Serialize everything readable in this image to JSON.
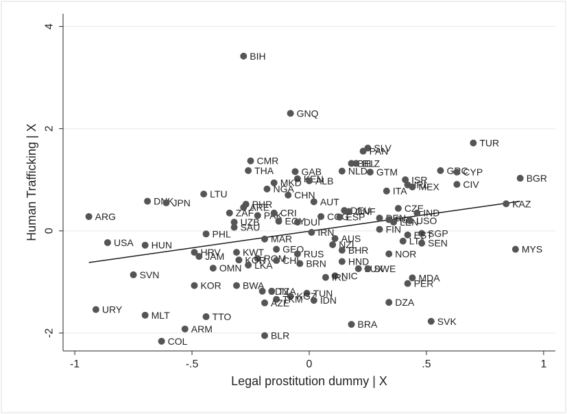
{
  "chart_data": {
    "type": "scatter",
    "title": "",
    "xlabel": "Legal prostitution dummy | X",
    "ylabel": "Human Trafficking | X",
    "xlim": [
      -1.05,
      1.05
    ],
    "ylim": [
      -2.35,
      4.25
    ],
    "x_ticks": [
      -1,
      -0.5,
      0,
      0.5,
      1
    ],
    "x_tick_labels": [
      "-1",
      "-.5",
      "0",
      ".5",
      "1"
    ],
    "y_ticks": [
      -2,
      0,
      2,
      4
    ],
    "y_tick_labels": [
      "-2",
      "0",
      "2",
      "4"
    ],
    "grid": true,
    "legend": "none",
    "colors": {
      "point": "#555555",
      "fit_line": "#1a1a1a",
      "grid": "#e8e8e8",
      "axis": "#222222",
      "border": "#dddddd"
    },
    "fit_line": {
      "x": [
        -0.94,
        0.9
      ],
      "y": [
        -0.62,
        0.58
      ]
    },
    "points": [
      {
        "label": "BIH",
        "x": -0.28,
        "y": 3.42
      },
      {
        "label": "GNQ",
        "x": -0.08,
        "y": 2.3
      },
      {
        "label": "TUR",
        "x": 0.7,
        "y": 1.72
      },
      {
        "label": "SLV",
        "x": 0.25,
        "y": 1.62
      },
      {
        "label": "PAN",
        "x": 0.23,
        "y": 1.56
      },
      {
        "label": "CMR",
        "x": -0.25,
        "y": 1.37
      },
      {
        "label": "BEL",
        "x": 0.18,
        "y": 1.32
      },
      {
        "label": "BLZ",
        "x": 0.2,
        "y": 1.32
      },
      {
        "label": "GRC",
        "x": 0.56,
        "y": 1.18
      },
      {
        "label": "CYP",
        "x": 0.63,
        "y": 1.15
      },
      {
        "label": "THA",
        "x": -0.26,
        "y": 1.18
      },
      {
        "label": "GAB",
        "x": -0.06,
        "y": 1.16
      },
      {
        "label": "NLD",
        "x": 0.14,
        "y": 1.17
      },
      {
        "label": "GTM",
        "x": 0.26,
        "y": 1.15
      },
      {
        "label": "KEN",
        "x": -0.05,
        "y": 1.02
      },
      {
        "label": "ALB",
        "x": 0.0,
        "y": 0.98
      },
      {
        "label": "MKD",
        "x": -0.15,
        "y": 0.94
      },
      {
        "label": "BGR",
        "x": 0.9,
        "y": 1.03
      },
      {
        "label": "ISR",
        "x": 0.41,
        "y": 1.0
      },
      {
        "label": "CIV",
        "x": 0.63,
        "y": 0.91
      },
      {
        "label": "IRL",
        "x": 0.42,
        "y": 0.9
      },
      {
        "label": "MEX",
        "x": 0.44,
        "y": 0.86
      },
      {
        "label": "NGA",
        "x": -0.18,
        "y": 0.82
      },
      {
        "label": "ITA",
        "x": 0.33,
        "y": 0.78
      },
      {
        "label": "LTU",
        "x": -0.45,
        "y": 0.72
      },
      {
        "label": "CHN",
        "x": -0.09,
        "y": 0.7
      },
      {
        "label": "DNK",
        "x": -0.69,
        "y": 0.58
      },
      {
        "label": "JPN",
        "x": -0.61,
        "y": 0.55
      },
      {
        "label": "AUT",
        "x": 0.02,
        "y": 0.57
      },
      {
        "label": "KAZ",
        "x": 0.84,
        "y": 0.53
      },
      {
        "label": "PHR",
        "x": -0.27,
        "y": 0.52
      },
      {
        "label": "ARE",
        "x": -0.28,
        "y": 0.46
      },
      {
        "label": "CZE",
        "x": 0.38,
        "y": 0.44
      },
      {
        "label": "DEU",
        "x": 0.15,
        "y": 0.4
      },
      {
        "label": "GNF",
        "x": 0.17,
        "y": 0.38
      },
      {
        "label": "IND",
        "x": 0.46,
        "y": 0.35
      },
      {
        "label": "ZAF",
        "x": -0.34,
        "y": 0.35
      },
      {
        "label": "PAK",
        "x": -0.22,
        "y": 0.3
      },
      {
        "label": "CRI",
        "x": -0.15,
        "y": 0.35
      },
      {
        "label": "ARG",
        "x": -0.94,
        "y": 0.28
      },
      {
        "label": "COG",
        "x": 0.05,
        "y": 0.28
      },
      {
        "label": "ESP",
        "x": 0.13,
        "y": 0.27
      },
      {
        "label": "DEN",
        "x": 0.3,
        "y": 0.25
      },
      {
        "label": "POL",
        "x": 0.34,
        "y": 0.22
      },
      {
        "label": "UZB",
        "x": -0.32,
        "y": 0.17
      },
      {
        "label": "EGY",
        "x": -0.13,
        "y": 0.19
      },
      {
        "label": "DUI",
        "x": -0.05,
        "y": 0.17
      },
      {
        "label": "LEN",
        "x": 0.36,
        "y": 0.17
      },
      {
        "label": "USO",
        "x": 0.43,
        "y": 0.2
      },
      {
        "label": "SAU",
        "x": -0.32,
        "y": 0.07
      },
      {
        "label": "FIN",
        "x": 0.3,
        "y": 0.03
      },
      {
        "label": "IRN",
        "x": 0.01,
        "y": -0.03
      },
      {
        "label": "SGP",
        "x": 0.48,
        "y": -0.05
      },
      {
        "label": "PHL",
        "x": -0.44,
        "y": -0.06
      },
      {
        "label": "EST",
        "x": 0.42,
        "y": -0.08
      },
      {
        "label": "AUS",
        "x": 0.11,
        "y": -0.15
      },
      {
        "label": "MAR",
        "x": -0.19,
        "y": -0.16
      },
      {
        "label": "LTA",
        "x": 0.4,
        "y": -0.2
      },
      {
        "label": "SEN",
        "x": 0.48,
        "y": -0.24
      },
      {
        "label": "USA",
        "x": -0.86,
        "y": -0.23
      },
      {
        "label": "HUN",
        "x": -0.7,
        "y": -0.28
      },
      {
        "label": "NZL",
        "x": 0.1,
        "y": -0.27
      },
      {
        "label": "MYS",
        "x": 0.88,
        "y": -0.36
      },
      {
        "label": "GEO",
        "x": -0.14,
        "y": -0.36
      },
      {
        "label": "BHR",
        "x": 0.14,
        "y": -0.38
      },
      {
        "label": "HRV",
        "x": -0.49,
        "y": -0.42
      },
      {
        "label": "KWT",
        "x": -0.31,
        "y": -0.42
      },
      {
        "label": "RUS",
        "x": -0.05,
        "y": -0.45
      },
      {
        "label": "NOR",
        "x": 0.34,
        "y": -0.45
      },
      {
        "label": "JAM",
        "x": -0.47,
        "y": -0.5
      },
      {
        "label": "ROM",
        "x": -0.22,
        "y": -0.54
      },
      {
        "label": "HND",
        "x": 0.14,
        "y": -0.6
      },
      {
        "label": "KOR",
        "x": -0.3,
        "y": -0.57
      },
      {
        "label": "CHL",
        "x": -0.14,
        "y": -0.58
      },
      {
        "label": "BRN",
        "x": -0.04,
        "y": -0.64
      },
      {
        "label": "LKA",
        "x": -0.26,
        "y": -0.67
      },
      {
        "label": "OMN",
        "x": -0.41,
        "y": -0.73
      },
      {
        "label": "LUX",
        "x": 0.21,
        "y": -0.74
      },
      {
        "label": "SWE",
        "x": 0.25,
        "y": -0.74
      },
      {
        "label": "SVN",
        "x": -0.75,
        "y": -0.86
      },
      {
        "label": "NIC",
        "x": 0.11,
        "y": -0.88
      },
      {
        "label": "IRL",
        "x": 0.07,
        "y": -0.91
      },
      {
        "label": "MDA",
        "x": 0.44,
        "y": -0.92
      },
      {
        "label": "PER",
        "x": 0.42,
        "y": -1.03
      },
      {
        "label": "KOR",
        "x": -0.49,
        "y": -1.07
      },
      {
        "label": "BWA",
        "x": -0.31,
        "y": -1.07
      },
      {
        "label": "SDN",
        "x": -0.2,
        "y": -1.18
      },
      {
        "label": "TZA",
        "x": -0.16,
        "y": -1.18
      },
      {
        "label": "TUN",
        "x": -0.01,
        "y": -1.22
      },
      {
        "label": "KGZ",
        "x": -0.08,
        "y": -1.28
      },
      {
        "label": "TKM",
        "x": -0.14,
        "y": -1.34
      },
      {
        "label": "IDN",
        "x": 0.02,
        "y": -1.36
      },
      {
        "label": "AZE",
        "x": -0.19,
        "y": -1.41
      },
      {
        "label": "DZA",
        "x": 0.34,
        "y": -1.4
      },
      {
        "label": "URY",
        "x": -0.91,
        "y": -1.54
      },
      {
        "label": "MLT",
        "x": -0.7,
        "y": -1.65
      },
      {
        "label": "TTO",
        "x": -0.44,
        "y": -1.68
      },
      {
        "label": "SVK",
        "x": 0.52,
        "y": -1.77
      },
      {
        "label": "BRA",
        "x": 0.18,
        "y": -1.83
      },
      {
        "label": "ARM",
        "x": -0.53,
        "y": -1.92
      },
      {
        "label": "BLR",
        "x": -0.19,
        "y": -2.05
      },
      {
        "label": "COL",
        "x": -0.63,
        "y": -2.16
      }
    ]
  }
}
